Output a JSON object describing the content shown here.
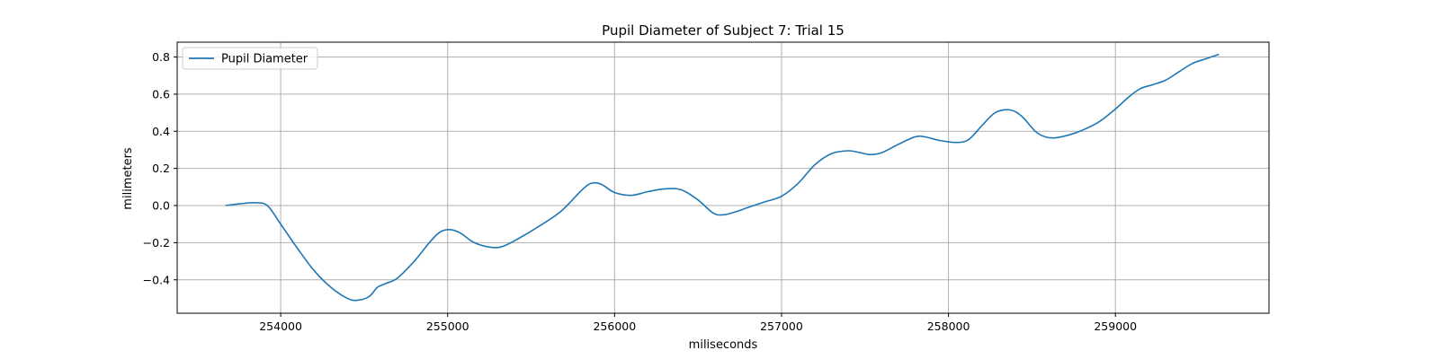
{
  "chart_data": {
    "type": "line",
    "title": "Pupil Diameter of Subject 7: Trial 15",
    "xlabel": "miliseconds",
    "ylabel": "milimeters",
    "xlim": [
      253380,
      259920
    ],
    "ylim": [
      -0.58,
      0.88
    ],
    "xticks": [
      254000,
      255000,
      256000,
      257000,
      258000,
      259000
    ],
    "xtick_labels": [
      "254000",
      "255000",
      "256000",
      "257000",
      "258000",
      "259000"
    ],
    "yticks": [
      -0.4,
      -0.2,
      0.0,
      0.2,
      0.4,
      0.6,
      0.8
    ],
    "ytick_labels": [
      "−0.4",
      "−0.2",
      "0.0",
      "0.2",
      "0.4",
      "0.6",
      "0.8"
    ],
    "grid": true,
    "legend": {
      "position": "top-left",
      "entries": [
        "Pupil Diameter"
      ]
    },
    "series": [
      {
        "name": "Pupil Diameter",
        "color": "#1f77b4",
        "x": [
          253670,
          253760,
          253850,
          253920,
          254000,
          254100,
          254200,
          254300,
          254400,
          254460,
          254530,
          254580,
          254630,
          254700,
          254800,
          254900,
          254960,
          255020,
          255080,
          255160,
          255260,
          255330,
          255420,
          255550,
          255680,
          255800,
          255860,
          255920,
          256000,
          256100,
          256200,
          256300,
          256400,
          256500,
          256590,
          256650,
          256720,
          256800,
          256900,
          257000,
          257100,
          257200,
          257300,
          257400,
          257470,
          257530,
          257600,
          257700,
          257800,
          257860,
          257950,
          258050,
          258120,
          258200,
          258280,
          258370,
          258440,
          258520,
          258580,
          258640,
          258720,
          258800,
          258900,
          259000,
          259080,
          259150,
          259220,
          259300,
          259380,
          259460,
          259540,
          259620
        ],
        "values": [
          0.0,
          0.01,
          0.015,
          0.0,
          -0.1,
          -0.23,
          -0.35,
          -0.44,
          -0.5,
          -0.51,
          -0.49,
          -0.44,
          -0.42,
          -0.39,
          -0.3,
          -0.19,
          -0.14,
          -0.13,
          -0.15,
          -0.2,
          -0.225,
          -0.22,
          -0.18,
          -0.11,
          -0.03,
          0.08,
          0.12,
          0.115,
          0.07,
          0.055,
          0.075,
          0.09,
          0.085,
          0.03,
          -0.04,
          -0.05,
          -0.035,
          -0.01,
          0.02,
          0.05,
          0.12,
          0.22,
          0.28,
          0.295,
          0.285,
          0.275,
          0.285,
          0.33,
          0.37,
          0.37,
          0.35,
          0.34,
          0.355,
          0.43,
          0.5,
          0.515,
          0.48,
          0.4,
          0.37,
          0.365,
          0.38,
          0.405,
          0.45,
          0.52,
          0.585,
          0.63,
          0.65,
          0.675,
          0.72,
          0.765,
          0.79,
          0.815
        ]
      }
    ]
  }
}
